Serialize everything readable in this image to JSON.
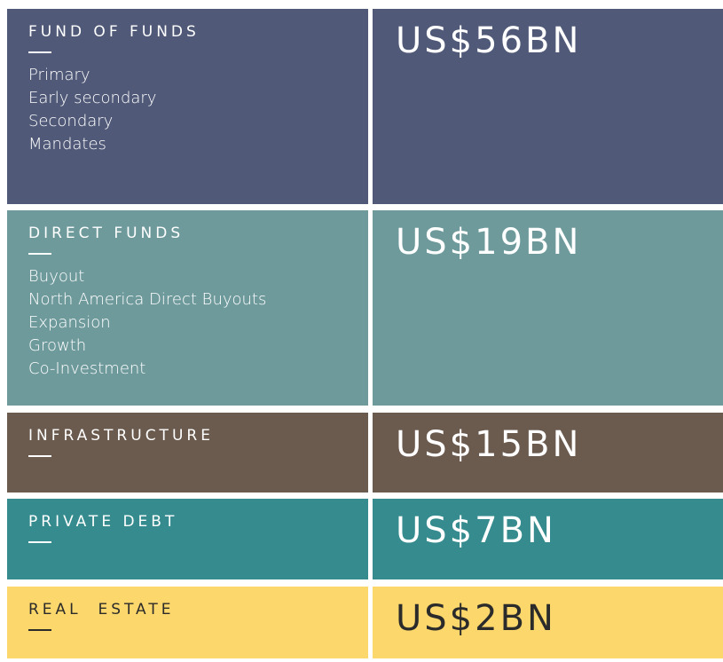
{
  "rows": [
    {
      "title": "FUND OF FUNDS",
      "items": [
        "Primary",
        "Early secondary",
        "Secondary",
        "Mandates"
      ],
      "amount": "US$56BN"
    },
    {
      "title": "DIRECT FUNDS",
      "items": [
        "Buyout",
        "North America Direct Buyouts",
        "Expansion",
        "Growth",
        "Co-Investment"
      ],
      "amount": "US$19BN"
    },
    {
      "title": "INFRASTRUCTURE",
      "items": [],
      "amount": "US$15BN"
    },
    {
      "title": "PRIVATE DEBT",
      "items": [],
      "amount": "US$7BN"
    },
    {
      "title": "REAL  ESTATE",
      "items": [],
      "amount": "US$2BN"
    }
  ]
}
